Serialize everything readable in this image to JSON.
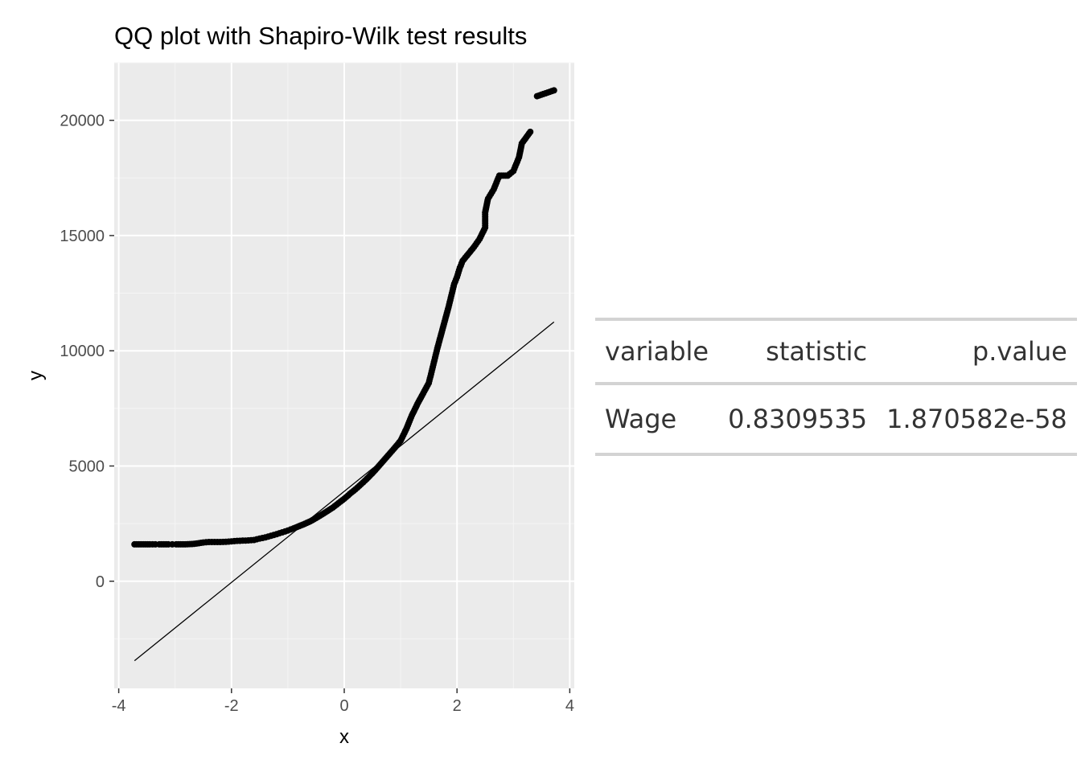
{
  "chart_data": {
    "type": "scatter",
    "title": "QQ plot with Shapiro-Wilk test results",
    "xlabel": "x",
    "ylabel": "y",
    "xlim": [
      -4.08,
      4.08
    ],
    "ylim": [
      -4650,
      22500
    ],
    "x_ticks": [
      -4,
      -2,
      0,
      2,
      4
    ],
    "y_ticks": [
      0,
      5000,
      10000,
      15000,
      20000
    ],
    "grid": true,
    "background": "#ebebeb",
    "point_color": "#000000",
    "reference_line": {
      "x": [
        -3.72,
        3.72
      ],
      "y": [
        -3450,
        11250
      ]
    },
    "points": [
      [
        -3.72,
        1600
      ],
      [
        -3.45,
        1600
      ],
      [
        -3.35,
        1600
      ],
      [
        -3.28,
        1600
      ],
      [
        -3.2,
        1600
      ],
      [
        -3.12,
        1600
      ],
      [
        -3.05,
        1600
      ],
      [
        -2.98,
        1600
      ],
      [
        -2.9,
        1600
      ],
      [
        -2.82,
        1600
      ],
      [
        -2.74,
        1610
      ],
      [
        -2.66,
        1620
      ],
      [
        -2.58,
        1650
      ],
      [
        -2.5,
        1680
      ],
      [
        -2.4,
        1700
      ],
      [
        -2.3,
        1700
      ],
      [
        -2.2,
        1700
      ],
      [
        -2.1,
        1710
      ],
      [
        -2.0,
        1730
      ],
      [
        -1.9,
        1750
      ],
      [
        -1.8,
        1760
      ],
      [
        -1.7,
        1770
      ],
      [
        -1.6,
        1790
      ],
      [
        -1.5,
        1850
      ],
      [
        -1.4,
        1900
      ],
      [
        -1.3,
        1970
      ],
      [
        -1.2,
        2040
      ],
      [
        -1.1,
        2120
      ],
      [
        -1.0,
        2200
      ],
      [
        -0.9,
        2290
      ],
      [
        -0.8,
        2390
      ],
      [
        -0.7,
        2490
      ],
      [
        -0.6,
        2600
      ],
      [
        -0.5,
        2740
      ],
      [
        -0.4,
        2890
      ],
      [
        -0.3,
        3040
      ],
      [
        -0.2,
        3200
      ],
      [
        -0.1,
        3390
      ],
      [
        0.0,
        3580
      ],
      [
        0.1,
        3790
      ],
      [
        0.2,
        3990
      ],
      [
        0.3,
        4210
      ],
      [
        0.4,
        4440
      ],
      [
        0.5,
        4690
      ],
      [
        0.6,
        4960
      ],
      [
        0.7,
        5240
      ],
      [
        0.8,
        5520
      ],
      [
        0.9,
        5800
      ],
      [
        1.0,
        6100
      ],
      [
        1.1,
        6600
      ],
      [
        1.2,
        7200
      ],
      [
        1.3,
        7700
      ],
      [
        1.4,
        8150
      ],
      [
        1.5,
        8600
      ],
      [
        1.55,
        9100
      ],
      [
        1.6,
        9600
      ],
      [
        1.65,
        10100
      ],
      [
        1.7,
        10550
      ],
      [
        1.75,
        11000
      ],
      [
        1.8,
        11450
      ],
      [
        1.85,
        11900
      ],
      [
        1.9,
        12400
      ],
      [
        1.95,
        12900
      ],
      [
        2.0,
        13200
      ],
      [
        2.05,
        13600
      ],
      [
        2.1,
        13900
      ],
      [
        2.2,
        14200
      ],
      [
        2.3,
        14500
      ],
      [
        2.4,
        14850
      ],
      [
        2.45,
        15100
      ],
      [
        2.5,
        15350
      ],
      [
        2.5,
        16000
      ],
      [
        2.55,
        16600
      ],
      [
        2.6,
        16800
      ],
      [
        2.65,
        17000
      ],
      [
        2.7,
        17300
      ],
      [
        2.75,
        17600
      ],
      [
        2.9,
        17600
      ],
      [
        3.0,
        17800
      ],
      [
        3.05,
        18100
      ],
      [
        3.1,
        18400
      ],
      [
        3.15,
        19000
      ],
      [
        3.3,
        19500
      ],
      [
        3.42,
        21050
      ],
      [
        3.72,
        21300
      ]
    ]
  },
  "table": {
    "headers": [
      "variable",
      "statistic",
      "p.value"
    ],
    "row": {
      "variable": "Wage",
      "statistic": "0.8309535",
      "p_value": "1.870582e-58"
    }
  }
}
